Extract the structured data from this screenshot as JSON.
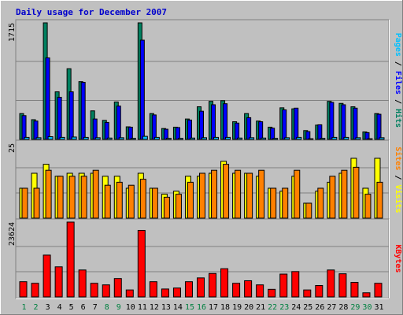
{
  "chart_data": {
    "type": "bar",
    "title": "Daily usage for December 2007",
    "days": [
      "1",
      "2",
      "3",
      "4",
      "5",
      "6",
      "7",
      "8",
      "9",
      "10",
      "11",
      "12",
      "13",
      "14",
      "15",
      "16",
      "17",
      "18",
      "19",
      "20",
      "21",
      "22",
      "23",
      "24",
      "25",
      "26",
      "27",
      "28",
      "29",
      "30",
      "31"
    ],
    "weekend_days": [
      "1",
      "2",
      "8",
      "9",
      "15",
      "16",
      "22",
      "23",
      "29",
      "30"
    ],
    "colors": {
      "background": "#C0C0C0",
      "title": "#0000CC",
      "hits": "#008060",
      "files": "#0000FF",
      "pages": "#00C0FF",
      "visits": "#FFFF00",
      "sites": "#FF8000",
      "kbytes": "#FF0000",
      "weekday_label": "#000000",
      "weekend_label": "#008040"
    },
    "panels": [
      {
        "name": "hits-files-pages",
        "ymax_label": "1715",
        "ymax": 1715,
        "right_label": [
          {
            "text": "Pages",
            "color": "#00C0FF"
          },
          {
            "text": " / ",
            "color": "#000000"
          },
          {
            "text": "Files",
            "color": "#0000FF"
          },
          {
            "text": " / ",
            "color": "#000000"
          },
          {
            "text": "Hits",
            "color": "#008060"
          }
        ],
        "series": [
          {
            "name": "Hits",
            "color": "#008060",
            "values": [
              380,
              290,
              1715,
              700,
              1040,
              850,
              420,
              280,
              550,
              185,
              1715,
              380,
              160,
              180,
              300,
              480,
              560,
              570,
              260,
              380,
              270,
              180,
              465,
              450,
              130,
              210,
              560,
              530,
              480,
              110,
              380
            ]
          },
          {
            "name": "Files",
            "color": "#0000FF",
            "values": [
              350,
              270,
              1200,
              620,
              700,
              840,
              300,
              250,
              490,
              180,
              1460,
              360,
              150,
              175,
              285,
              415,
              510,
              525,
              240,
              320,
              260,
              165,
              435,
              460,
              115,
              215,
              545,
              510,
              460,
              100,
              370
            ]
          },
          {
            "name": "Pages",
            "color": "#00C0FF",
            "values": [
              30,
              25,
              40,
              30,
              35,
              30,
              25,
              20,
              25,
              15,
              45,
              30,
              15,
              15,
              20,
              25,
              30,
              30,
              20,
              25,
              20,
              15,
              25,
              30,
              10,
              15,
              30,
              30,
              25,
              10,
              25
            ]
          }
        ]
      },
      {
        "name": "sites-visits",
        "ymax_label": "25",
        "ymax": 25,
        "right_label": [
          {
            "text": "Sites",
            "color": "#FF8000"
          },
          {
            "text": " / ",
            "color": "#000000"
          },
          {
            "text": "Visits",
            "color": "#FFFF00"
          }
        ],
        "series": [
          {
            "name": "Visits",
            "color": "#FFFF00",
            "values": [
              10,
              15,
              18,
              14,
              15,
              15,
              15,
              14,
              14,
              10,
              15,
              10,
              8,
              9,
              14,
              14,
              15,
              19,
              15,
              15,
              14,
              10,
              9,
              14,
              5,
              9,
              12,
              15,
              20,
              10,
              20
            ]
          },
          {
            "name": "Sites",
            "color": "#FF8000",
            "values": [
              10,
              10,
              16,
              14,
              14,
              14,
              16,
              11,
              12,
              11,
              13,
              10,
              7,
              8,
              12,
              15,
              16,
              18,
              16,
              15,
              16,
              10,
              10,
              16,
              5,
              10,
              14,
              16,
              17,
              8,
              12
            ]
          }
        ]
      },
      {
        "name": "kbytes",
        "ymax_label": "23624",
        "ymax": 23624,
        "right_label": [
          {
            "text": "KBytes",
            "color": "#FF0000"
          }
        ],
        "series": [
          {
            "name": "KBytes",
            "color": "#FF0000",
            "values": [
              4800,
              4300,
              13200,
              9500,
              23624,
              8500,
              4300,
              3800,
              5800,
              2200,
              21000,
              4800,
              2500,
              2800,
              4800,
              6000,
              7400,
              8900,
              4300,
              5100,
              3800,
              2400,
              7200,
              8000,
              2200,
              3600,
              8500,
              7300,
              4600,
              1300,
              4300
            ]
          }
        ]
      }
    ]
  }
}
